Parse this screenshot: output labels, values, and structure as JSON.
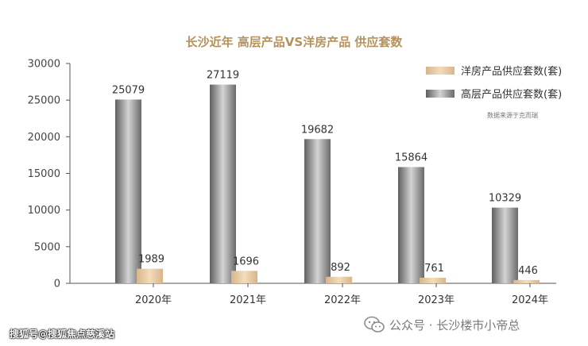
{
  "chart_data": {
    "type": "bar",
    "title": "长沙近年  高层产品VS洋房产品  供应套数",
    "categories": [
      "2020年",
      "2021年",
      "2022年",
      "2023年",
      "2024年"
    ],
    "series": [
      {
        "name": "高层产品供应套数(套)",
        "values": [
          25079,
          27119,
          19682,
          15864,
          10329
        ],
        "color": "#8f8f8f"
      },
      {
        "name": "洋房产品供应套数(套)",
        "values": [
          1989,
          1696,
          892,
          761,
          446
        ],
        "color": "#e2c397"
      }
    ],
    "ylim": [
      0,
      30000
    ],
    "yticks": [
      "0",
      "5000",
      "10000",
      "15000",
      "20000",
      "25000",
      "30000"
    ],
    "grid": false,
    "legend_position": "top-right",
    "source_note": "数据来源于克而瑞",
    "colors": {
      "title": "#b5925a",
      "axis": "#555555"
    }
  },
  "watermark": {
    "left": "搜狐号@搜狐焦点慈溪站",
    "right": "公众号 · 长沙楼市小帝总",
    "icon": "wechat-icon"
  }
}
